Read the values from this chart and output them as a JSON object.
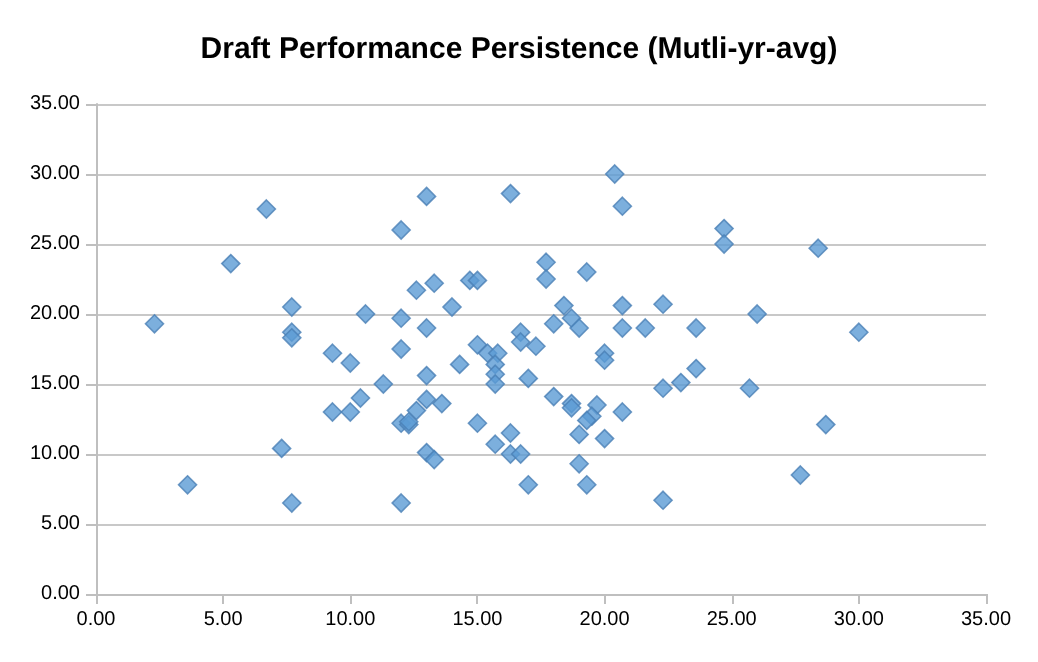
{
  "chart_data": {
    "type": "scatter",
    "title": "Draft Performance Persistence (Mutli-yr-avg)",
    "x": [
      6.7,
      12.0,
      5.3,
      7.7,
      2.3,
      7.7,
      7.7,
      10.6,
      12.0,
      9.3,
      10.0,
      12.0,
      11.3,
      10.4,
      9.3,
      10.0,
      12.0,
      12.3,
      7.3,
      3.6,
      7.7,
      12.0,
      13.0,
      16.3,
      20.4,
      20.7,
      17.7,
      17.7,
      19.3,
      12.6,
      13.3,
      14.7,
      15.0,
      14.0,
      13.0,
      18.4,
      18.0,
      18.7,
      19.0,
      20.7,
      20.7,
      21.6,
      22.3,
      23.6,
      16.7,
      16.7,
      17.3,
      15.0,
      15.4,
      15.8,
      15.7,
      15.7,
      15.7,
      14.3,
      13.0,
      17.0,
      20.0,
      20.0,
      22.3,
      23.0,
      23.6,
      13.0,
      12.6,
      13.6,
      12.3,
      18.0,
      18.7,
      18.7,
      19.7,
      19.5,
      19.3,
      19.0,
      20.7,
      20.0,
      15.0,
      16.3,
      15.7,
      16.3,
      16.7,
      13.0,
      13.3,
      19.0,
      17.0,
      19.3,
      22.3,
      24.7,
      24.7,
      28.4,
      26.0,
      30.0,
      25.7,
      28.7,
      27.7
    ],
    "values": [
      27.5,
      26.0,
      23.6,
      20.5,
      19.3,
      18.7,
      18.3,
      20.0,
      19.7,
      17.2,
      16.5,
      17.5,
      15.0,
      14.0,
      13.0,
      13.0,
      12.2,
      12.1,
      10.4,
      7.8,
      6.5,
      6.5,
      28.4,
      28.6,
      30.0,
      27.7,
      23.7,
      22.5,
      23.0,
      21.7,
      22.2,
      22.4,
      22.4,
      20.5,
      19.0,
      20.6,
      19.3,
      19.7,
      19.0,
      20.6,
      19.0,
      19.0,
      20.7,
      19.0,
      18.7,
      18.0,
      17.7,
      17.8,
      17.2,
      17.2,
      16.4,
      15.7,
      15.0,
      16.4,
      15.6,
      15.4,
      17.2,
      16.7,
      14.7,
      15.1,
      16.1,
      13.9,
      13.1,
      13.6,
      12.3,
      14.1,
      13.6,
      13.3,
      13.5,
      12.7,
      12.4,
      11.4,
      13.0,
      11.1,
      12.2,
      11.5,
      10.7,
      10.0,
      10.0,
      10.1,
      9.6,
      9.3,
      7.8,
      7.8,
      6.7,
      26.1,
      25.0,
      24.7,
      20.0,
      18.7,
      14.7,
      12.1,
      8.5
    ],
    "color": "#5b9bd5",
    "marker": "diamond",
    "xlim": [
      0,
      35
    ],
    "xticks": [
      {
        "value": 0,
        "label": "0.00"
      },
      {
        "value": 5,
        "label": "5.00"
      },
      {
        "value": 10,
        "label": "10.00"
      },
      {
        "value": 15,
        "label": "15.00"
      },
      {
        "value": 20,
        "label": "20.00"
      },
      {
        "value": 25,
        "label": "25.00"
      },
      {
        "value": 30,
        "label": "30.00"
      },
      {
        "value": 35,
        "label": "35.00"
      }
    ],
    "ylim": [
      0,
      35
    ],
    "yticks": [
      {
        "value": 0,
        "label": "0.00"
      },
      {
        "value": 5,
        "label": "5.00"
      },
      {
        "value": 10,
        "label": "10.00"
      },
      {
        "value": 15,
        "label": "15.00"
      },
      {
        "value": 20,
        "label": "20.00"
      },
      {
        "value": 25,
        "label": "25.00"
      },
      {
        "value": 30,
        "label": "30.00"
      },
      {
        "value": 35,
        "label": "35.00"
      }
    ],
    "grid": "y"
  }
}
